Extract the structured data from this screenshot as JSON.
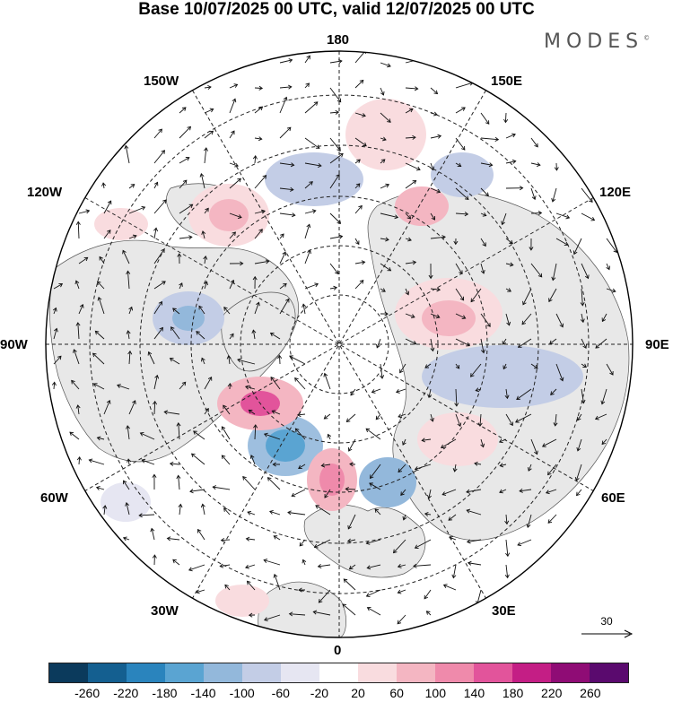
{
  "title": "Base 10/07/2025 00 UTC, valid 12/07/2025 00 UTC",
  "brand": "MODES",
  "brand_mark": "©",
  "longitude_labels": {
    "top": "180",
    "bottom": "0",
    "left": "90W",
    "right": "90E",
    "upper_left_1": "150W",
    "upper_left_2": "120W",
    "upper_right_1": "150E",
    "upper_right_2": "120E",
    "lower_left_1": "60W",
    "lower_left_2": "30W",
    "lower_right_1": "60E",
    "lower_right_2": "30E"
  },
  "reference_vector": "30",
  "colorbar": {
    "colors": [
      "#0b3a5c",
      "#145f90",
      "#2a84bd",
      "#5aa4d2",
      "#93b8db",
      "#c3cde6",
      "#e6e6f2",
      "#ffffff",
      "#f9dcdf",
      "#f4b6c2",
      "#ef8aab",
      "#e2549b",
      "#c41e85",
      "#8f0c75",
      "#5a0a6e"
    ],
    "labels": [
      "-260",
      "-220",
      "-180",
      "-140",
      "-100",
      "-60",
      "-20",
      "20",
      "60",
      "100",
      "140",
      "180",
      "220",
      "260"
    ]
  }
}
